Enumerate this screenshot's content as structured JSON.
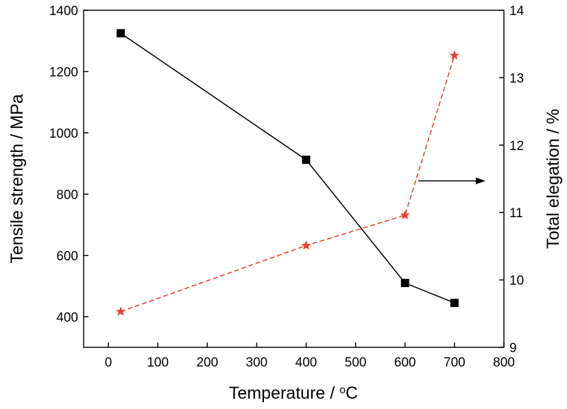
{
  "chart_data": {
    "type": "line",
    "dual_axis": true,
    "x": {
      "label_prefix": "Temperature / ",
      "label_unit_sup": "o",
      "label_unit": "C",
      "range": [
        -50,
        800
      ],
      "ticks": [
        0,
        100,
        200,
        300,
        400,
        500,
        600,
        700,
        800
      ]
    },
    "y_left": {
      "label": "Tensile strength / MPa",
      "range": [
        300,
        1400
      ],
      "ticks": [
        400,
        600,
        800,
        1000,
        1200,
        1400
      ]
    },
    "y_right": {
      "label": "Total elegation / %",
      "range": [
        9,
        14
      ],
      "ticks": [
        9,
        10,
        11,
        12,
        13,
        14
      ]
    },
    "series": [
      {
        "axis": "left",
        "marker": "square",
        "line_style": "solid",
        "color": "#000000",
        "points": [
          {
            "x": 25,
            "y": 1325
          },
          {
            "x": 400,
            "y": 912
          },
          {
            "x": 600,
            "y": 510
          },
          {
            "x": 700,
            "y": 445
          }
        ]
      },
      {
        "axis": "right",
        "marker": "star",
        "line_style": "dashed",
        "color": "#e8412c",
        "points": [
          {
            "x": 25,
            "y": 9.53
          },
          {
            "x": 400,
            "y": 10.51
          },
          {
            "x": 600,
            "y": 10.96
          },
          {
            "x": 700,
            "y": 13.33
          }
        ]
      }
    ],
    "annotation": {
      "type": "arrow",
      "direction": "right",
      "points_to_axis": "right"
    },
    "grid": false,
    "legend": "none"
  }
}
